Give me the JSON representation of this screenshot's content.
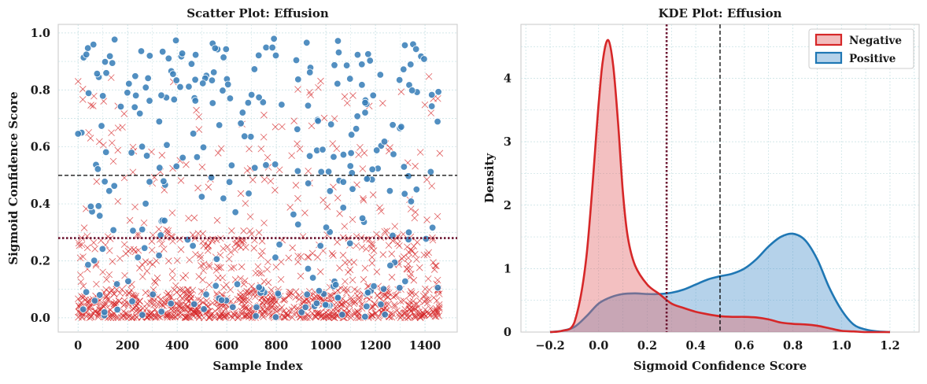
{
  "colors": {
    "negative": "#d62728",
    "positive": "#3a7fb8",
    "threshold_opt": "#6b1530",
    "threshold_half": "#000000"
  },
  "chart_data": [
    {
      "type": "scatter",
      "title": "Scatter Plot: Effusion",
      "xlabel": "Sample Index",
      "ylabel": "Sigmoid Confidence Score",
      "xlim": [
        -80,
        1530
      ],
      "ylim": [
        -0.05,
        1.03
      ],
      "xticks": [
        0,
        200,
        400,
        600,
        800,
        1000,
        1200,
        1400
      ],
      "yticks": [
        0.0,
        0.2,
        0.4,
        0.6,
        0.8,
        1.0
      ],
      "hlines": [
        0.5,
        0.28
      ],
      "grid": true,
      "series": [
        {
          "name": "Negative",
          "marker": "x",
          "count": 1180,
          "points": []
        },
        {
          "name": "Positive",
          "marker": "o",
          "count": 290,
          "points": []
        }
      ]
    },
    {
      "type": "area",
      "title": "KDE Plot: Effusion",
      "xlabel": "Sigmoid Confidence Score",
      "ylabel": "Density",
      "xlim": [
        -0.32,
        1.32
      ],
      "ylim": [
        0,
        4.85
      ],
      "xticks": [
        -0.2,
        0.0,
        0.2,
        0.4,
        0.6,
        0.8,
        1.0,
        1.2
      ],
      "yticks": [
        0,
        1,
        2,
        3,
        4
      ],
      "vlines": [
        0.5,
        0.28
      ],
      "legend": "top-right",
      "grid": true,
      "series": [
        {
          "name": "Negative",
          "x": [
            -0.2,
            -0.15,
            -0.1,
            -0.05,
            0.0,
            0.02,
            0.04,
            0.06,
            0.08,
            0.1,
            0.12,
            0.15,
            0.2,
            0.25,
            0.3,
            0.35,
            0.4,
            0.45,
            0.5,
            0.55,
            0.6,
            0.65,
            0.7,
            0.75,
            0.8,
            0.85,
            0.9,
            0.95,
            1.0,
            1.05,
            1.1,
            1.15,
            1.2
          ],
          "values": [
            0,
            0.02,
            0.15,
            1.2,
            3.6,
            4.35,
            4.6,
            4.2,
            3.3,
            2.2,
            1.5,
            1.05,
            0.75,
            0.6,
            0.45,
            0.38,
            0.32,
            0.28,
            0.25,
            0.24,
            0.24,
            0.23,
            0.2,
            0.15,
            0.13,
            0.12,
            0.1,
            0.06,
            0.02,
            0.01,
            0,
            0,
            0
          ]
        },
        {
          "name": "Positive",
          "x": [
            -0.2,
            -0.15,
            -0.1,
            -0.05,
            0.0,
            0.05,
            0.1,
            0.15,
            0.2,
            0.25,
            0.3,
            0.35,
            0.4,
            0.45,
            0.5,
            0.55,
            0.6,
            0.65,
            0.7,
            0.75,
            0.8,
            0.85,
            0.9,
            0.95,
            1.0,
            1.05,
            1.1,
            1.15,
            1.2
          ],
          "values": [
            0,
            0.02,
            0.08,
            0.25,
            0.45,
            0.55,
            0.6,
            0.61,
            0.6,
            0.6,
            0.62,
            0.67,
            0.75,
            0.83,
            0.88,
            0.92,
            1.0,
            1.15,
            1.35,
            1.5,
            1.55,
            1.45,
            1.15,
            0.7,
            0.35,
            0.12,
            0.04,
            0.01,
            0
          ]
        }
      ]
    }
  ]
}
